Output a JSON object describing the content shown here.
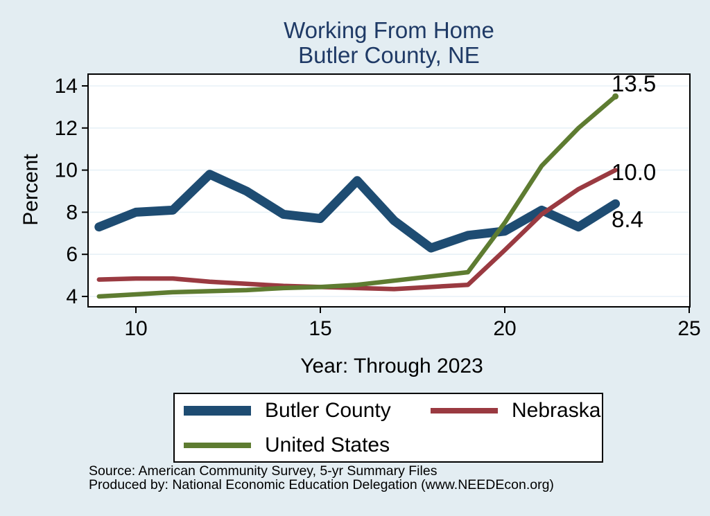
{
  "title": {
    "line1": "Working From Home",
    "line2": "Butler County, NE"
  },
  "chart_data": {
    "type": "line",
    "x": [
      9,
      10,
      11,
      12,
      13,
      14,
      15,
      16,
      17,
      18,
      19,
      20,
      21,
      22,
      23
    ],
    "series": [
      {
        "name": "Butler County",
        "color": "#1e4c72",
        "values": [
          7.3,
          8.0,
          8.1,
          9.8,
          9.0,
          7.9,
          7.7,
          9.5,
          7.6,
          6.3,
          6.9,
          7.1,
          8.1,
          7.3,
          8.4
        ]
      },
      {
        "name": "Nebraska",
        "color": "#9a3a41",
        "values": [
          4.8,
          4.85,
          4.85,
          4.7,
          4.6,
          4.5,
          4.45,
          4.4,
          4.35,
          4.45,
          4.55,
          6.2,
          7.9,
          9.1,
          10.0
        ]
      },
      {
        "name": "United States",
        "color": "#5e7c31",
        "values": [
          4.0,
          4.1,
          4.2,
          4.25,
          4.3,
          4.4,
          4.45,
          4.55,
          4.75,
          4.95,
          5.15,
          7.5,
          10.2,
          12.0,
          13.5
        ]
      }
    ],
    "xlabel": "Year: Through 2023",
    "ylabel": "Percent",
    "x_ticks": [
      10,
      15,
      20,
      25
    ],
    "y_ticks": [
      4,
      6,
      8,
      10,
      12,
      14
    ],
    "xlim": [
      8.7,
      25.0
    ],
    "ylim": [
      3.5,
      14.6
    ],
    "grid": "horizontal",
    "end_labels": [
      {
        "text": "13.5",
        "series": "United States"
      },
      {
        "text": "10.0",
        "series": "Nebraska"
      },
      {
        "text": "8.4",
        "series": "Butler County"
      }
    ]
  },
  "legend": {
    "position": "bottom",
    "items": [
      {
        "label": "Butler County",
        "color": "#1e4c72"
      },
      {
        "label": "Nebraska",
        "color": "#9a3a41"
      },
      {
        "label": "United States",
        "color": "#5e7c31"
      }
    ]
  },
  "footer": {
    "source": "Source: American Community Survey, 5-yr Summary Files",
    "produced": "Produced by: National Economic Education Delegation (www.NEEDEcon.org)"
  },
  "colors": {
    "background": "#e3edf2",
    "title": "#1f3a66",
    "plot_background": "#ffffff",
    "gridline": "#e7f1f7"
  }
}
